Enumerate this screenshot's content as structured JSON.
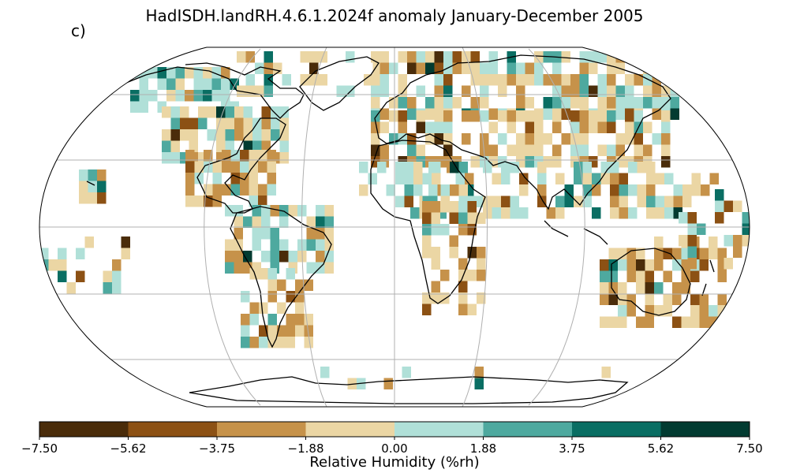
{
  "title": "HadISDH.landRH.4.6.1.2024f anomaly January-December 2005",
  "panel_label": "c)",
  "projection": "Robinson",
  "colorbar": {
    "label": "Relative Humidity (%rh)",
    "ticks": [
      "−7.50",
      "−5.62",
      "−3.75",
      "−1.88",
      "0.00",
      "1.88",
      "3.75",
      "5.62",
      "7.50"
    ],
    "colors": [
      "#4a2c0a",
      "#8c5114",
      "#c6924a",
      "#ebd6a4",
      "#b0e0d8",
      "#4ea99f",
      "#0a6e63",
      "#023b31"
    ]
  },
  "grid_lines": "on",
  "coastlines": "on"
}
